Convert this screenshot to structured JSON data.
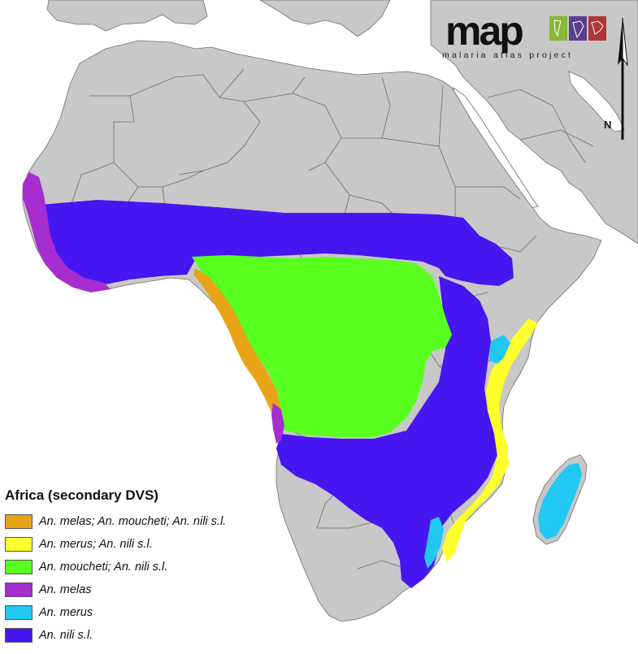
{
  "logo": {
    "wordmark": "map",
    "subtitle": "malaria atlas project",
    "tile_colors": [
      "#8ab73a",
      "#5a3f8f",
      "#b03636"
    ]
  },
  "north_arrow": {
    "label": "N"
  },
  "legend": {
    "title": "Africa (secondary DVS)",
    "items": [
      {
        "label": "An. melas; An. moucheti; An. nili s.l.",
        "color": "#e8a317"
      },
      {
        "label": "An. merus; An. nili s.l.",
        "color": "#ffff2b"
      },
      {
        "label": "An. moucheti; An. nili s.l.",
        "color": "#59ff1e"
      },
      {
        "label": "An. melas",
        "color": "#a62dcf"
      },
      {
        "label": "An. merus",
        "color": "#20c8f2"
      },
      {
        "label": "An. nili s.l.",
        "color": "#4616f0"
      }
    ]
  },
  "colors": {
    "land": "#c8c8c8",
    "sea": "#ffffff",
    "boundary": "#6e6e6e"
  }
}
